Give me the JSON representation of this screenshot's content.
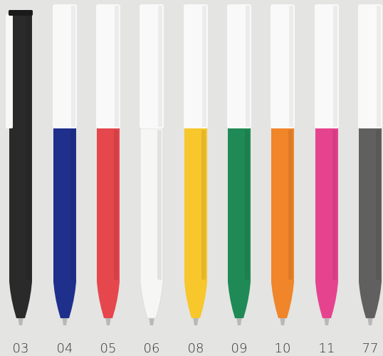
{
  "labels": [
    "03",
    "04",
    "05",
    "06",
    "08",
    "09",
    "10",
    "11",
    "77"
  ]
}
